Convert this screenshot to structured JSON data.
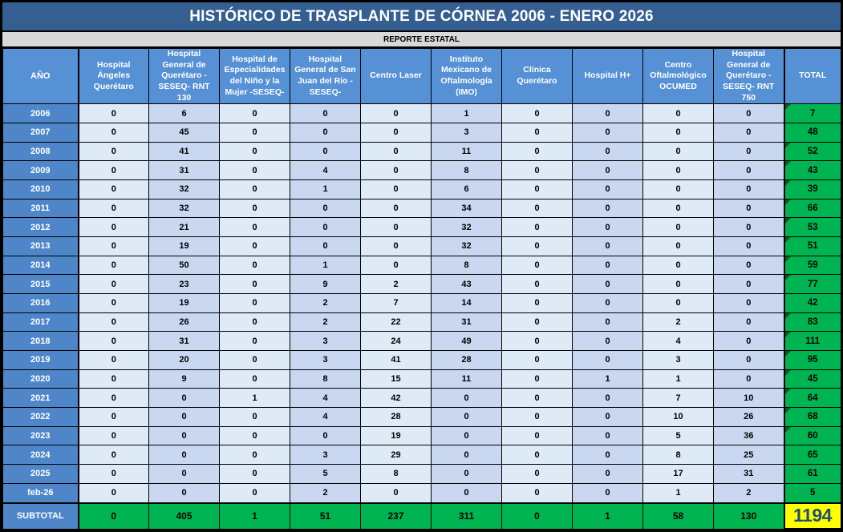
{
  "title": "HISTÓRICO DE TRASPLANTE DE CÓRNEA 2006 - ENERO 2026",
  "subtitle": "REPORTE ESTATAL",
  "columns": [
    "AÑO",
    "Hospital Ángeles Querétaro",
    "Hospital General de Querétaro - SESEQ- RNT 130",
    "Hospital de Especialidades del Niño y la Mujer -SESEQ-",
    "Hospital General de San Juan del Río -SESEQ-",
    "Centro Laser",
    "Instituto Mexicano de Oftalmología (IMO)",
    "Clínica Querétaro",
    "Hospital H+",
    "Centro Oftalmológico OCUMED",
    "Hospital General de Querétaro - SESEQ- RNT 750",
    "TOTAL"
  ],
  "rows": [
    {
      "year": "2006",
      "values": [
        0,
        6,
        0,
        0,
        0,
        1,
        0,
        0,
        0,
        0
      ],
      "total": 7,
      "corner_marker": true
    },
    {
      "year": "2007",
      "values": [
        0,
        45,
        0,
        0,
        0,
        3,
        0,
        0,
        0,
        0
      ],
      "total": 48,
      "corner_marker": false
    },
    {
      "year": "2008",
      "values": [
        0,
        41,
        0,
        0,
        0,
        11,
        0,
        0,
        0,
        0
      ],
      "total": 52,
      "corner_marker": true
    },
    {
      "year": "2009",
      "values": [
        0,
        31,
        0,
        4,
        0,
        8,
        0,
        0,
        0,
        0
      ],
      "total": 43,
      "corner_marker": true
    },
    {
      "year": "2010",
      "values": [
        0,
        32,
        0,
        1,
        0,
        6,
        0,
        0,
        0,
        0
      ],
      "total": 39,
      "corner_marker": true
    },
    {
      "year": "2011",
      "values": [
        0,
        32,
        0,
        0,
        0,
        34,
        0,
        0,
        0,
        0
      ],
      "total": 66,
      "corner_marker": true
    },
    {
      "year": "2012",
      "values": [
        0,
        21,
        0,
        0,
        0,
        32,
        0,
        0,
        0,
        0
      ],
      "total": 53,
      "corner_marker": true
    },
    {
      "year": "2013",
      "values": [
        0,
        19,
        0,
        0,
        0,
        32,
        0,
        0,
        0,
        0
      ],
      "total": 51,
      "corner_marker": true
    },
    {
      "year": "2014",
      "values": [
        0,
        50,
        0,
        1,
        0,
        8,
        0,
        0,
        0,
        0
      ],
      "total": 59,
      "corner_marker": true
    },
    {
      "year": "2015",
      "values": [
        0,
        23,
        0,
        9,
        2,
        43,
        0,
        0,
        0,
        0
      ],
      "total": 77,
      "corner_marker": true
    },
    {
      "year": "2016",
      "values": [
        0,
        19,
        0,
        2,
        7,
        14,
        0,
        0,
        0,
        0
      ],
      "total": 42,
      "corner_marker": false
    },
    {
      "year": "2017",
      "values": [
        0,
        26,
        0,
        2,
        22,
        31,
        0,
        0,
        2,
        0
      ],
      "total": 83,
      "corner_marker": true
    },
    {
      "year": "2018",
      "values": [
        0,
        31,
        0,
        3,
        24,
        49,
        0,
        0,
        4,
        0
      ],
      "total": 111,
      "corner_marker": true
    },
    {
      "year": "2019",
      "values": [
        0,
        20,
        0,
        3,
        41,
        28,
        0,
        0,
        3,
        0
      ],
      "total": 95,
      "corner_marker": true
    },
    {
      "year": "2020",
      "values": [
        0,
        9,
        0,
        8,
        15,
        11,
        0,
        1,
        1,
        0
      ],
      "total": 45,
      "corner_marker": true
    },
    {
      "year": "2021",
      "values": [
        0,
        0,
        1,
        4,
        42,
        0,
        0,
        0,
        7,
        10
      ],
      "total": 64,
      "corner_marker": true
    },
    {
      "year": "2022",
      "values": [
        0,
        0,
        0,
        4,
        28,
        0,
        0,
        0,
        10,
        26
      ],
      "total": 68,
      "corner_marker": true
    },
    {
      "year": "2023",
      "values": [
        0,
        0,
        0,
        0,
        19,
        0,
        0,
        0,
        5,
        36
      ],
      "total": 60,
      "corner_marker": true
    },
    {
      "year": "2024",
      "values": [
        0,
        0,
        0,
        3,
        29,
        0,
        0,
        0,
        8,
        25
      ],
      "total": 65,
      "corner_marker": false
    },
    {
      "year": "2025",
      "values": [
        0,
        0,
        0,
        5,
        8,
        0,
        0,
        0,
        17,
        31
      ],
      "total": 61,
      "corner_marker": false
    },
    {
      "year": "feb-26",
      "values": [
        0,
        0,
        0,
        2,
        0,
        0,
        0,
        0,
        1,
        2
      ],
      "total": 5,
      "corner_marker": false
    }
  ],
  "subtotal": {
    "label": "SUBTOTAL",
    "values": [
      0,
      405,
      1,
      51,
      237,
      311,
      0,
      1,
      58,
      130
    ],
    "grand_total": 1194
  },
  "colors": {
    "title-bg": "#355F90",
    "subtitle-bg": "#D9D9D9",
    "header-bg": "#5690D5",
    "year-bg": "#4E86C9",
    "col-light": "#DFEAF7",
    "col-dark": "#C9D8F0",
    "green": "#00B551",
    "marker-green": "#14591D",
    "yellow": "#FFFF00",
    "grand-text": "#1F4E79",
    "border": "#000000"
  }
}
